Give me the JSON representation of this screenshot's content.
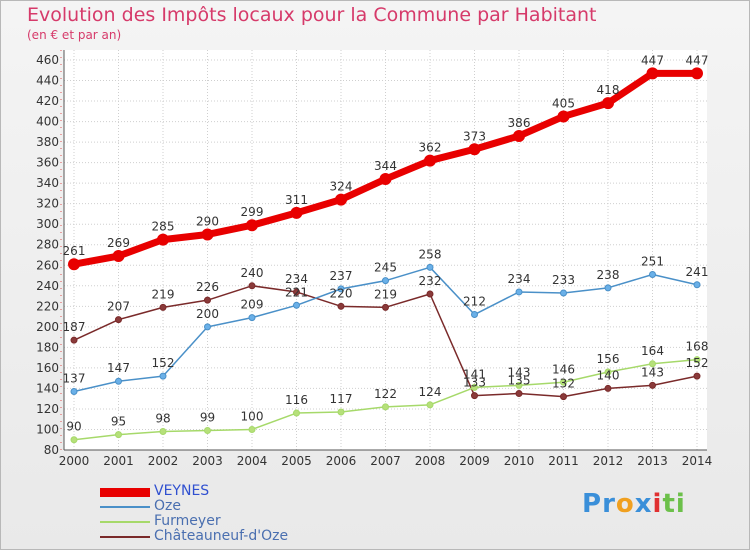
{
  "title": "Evolution des Impôts locaux pour la Commune par Habitant",
  "subtitle": "(en € et par an)",
  "logo": {
    "letters": [
      "P",
      "r",
      "o",
      "x",
      "i",
      "t",
      "i"
    ],
    "colors": [
      "#3a8fd9",
      "#3a8fd9",
      "#f0a020",
      "#3a8fd9",
      "#e03030",
      "#6cc04a",
      "#6cc04a"
    ]
  },
  "chart_data": {
    "type": "line",
    "title": "Evolution des Impôts locaux pour la Commune par Habitant",
    "subtitle": "(en € et par an)",
    "xlabel": "",
    "ylabel": "",
    "x": [
      "2000",
      "2001",
      "2002",
      "2003",
      "2004",
      "2005",
      "2006",
      "2007",
      "2008",
      "2009",
      "2010",
      "2011",
      "2012",
      "2013",
      "2014"
    ],
    "ylim": [
      80,
      460
    ],
    "yticks": [
      80,
      100,
      120,
      140,
      160,
      180,
      200,
      220,
      240,
      260,
      280,
      300,
      320,
      340,
      360,
      380,
      400,
      420,
      440,
      460
    ],
    "grid": true,
    "legend_position": "bottom-left",
    "series": [
      {
        "name": "VEYNES",
        "color": "#e80000",
        "values": [
          261,
          269,
          285,
          290,
          299,
          311,
          324,
          344,
          362,
          373,
          386,
          405,
          418,
          447,
          447
        ]
      },
      {
        "name": "Oze",
        "color": "#4a90c8",
        "values": [
          137,
          147,
          152,
          200,
          209,
          221,
          237,
          245,
          258,
          212,
          234,
          233,
          238,
          251,
          241
        ]
      },
      {
        "name": "Furmeyer",
        "color": "#a6d96a",
        "values": [
          90,
          95,
          98,
          99,
          100,
          116,
          117,
          122,
          124,
          141,
          143,
          146,
          156,
          164,
          168
        ]
      },
      {
        "name": "Châteauneuf-d'Oze",
        "color": "#7a2a2a",
        "values": [
          187,
          207,
          219,
          226,
          240,
          234,
          220,
          219,
          232,
          133,
          135,
          132,
          140,
          143,
          152
        ]
      }
    ],
    "data_labels": [
      [
        "261",
        "269",
        "285",
        "290",
        "299",
        "311",
        "324",
        "344",
        "362",
        "373",
        "386",
        "405",
        "418",
        "447",
        "447"
      ],
      [
        "137",
        "147",
        "152",
        "200",
        "209",
        "221",
        "237",
        "245",
        "258",
        "212",
        "234",
        "233",
        "238",
        "251",
        "241"
      ],
      [
        "90",
        "95",
        "98",
        "99",
        "100",
        "116",
        "117",
        "122",
        "124",
        "141",
        "143",
        "146",
        "156",
        "164",
        "168"
      ],
      [
        "187",
        "207",
        "219",
        "226",
        "240",
        "234",
        "220",
        "219",
        "232",
        "133",
        "135",
        "132",
        "140",
        "143",
        "152"
      ]
    ]
  }
}
